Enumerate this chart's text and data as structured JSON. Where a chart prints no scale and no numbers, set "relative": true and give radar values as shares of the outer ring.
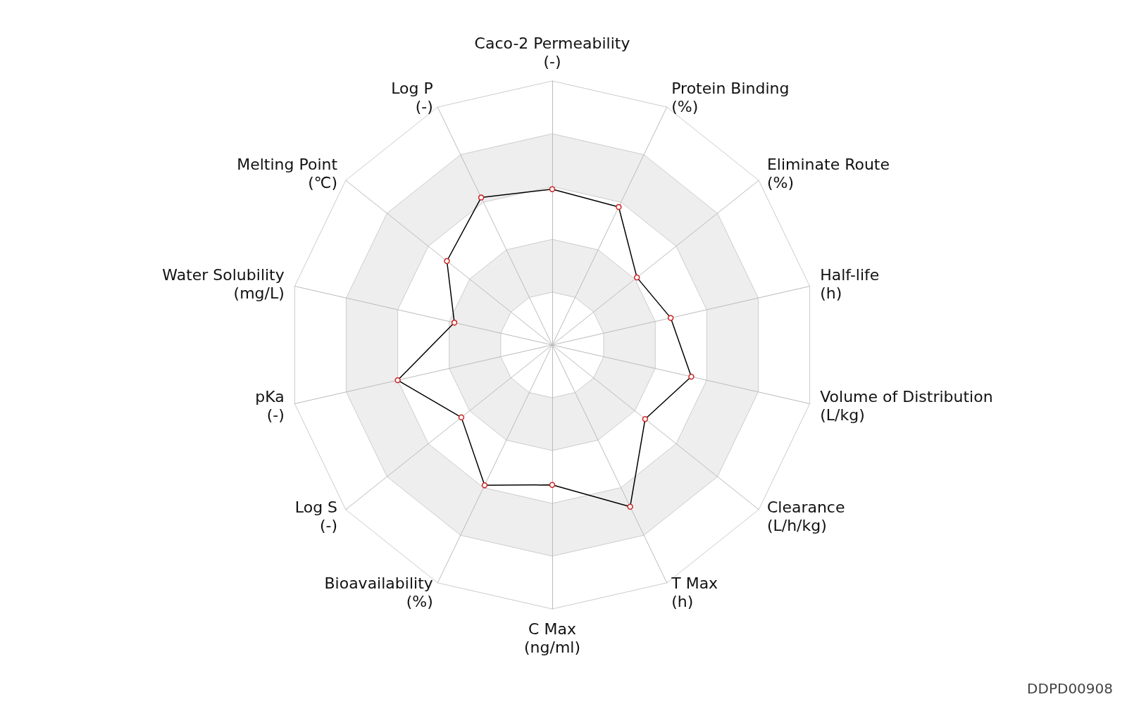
{
  "chart_data": {
    "type": "radar",
    "relative": true,
    "grid": true,
    "marker": "circle",
    "line_style": "solid",
    "categories": [
      "Caco-2 Permeability\n(-)",
      "Protein Binding\n(%)",
      "Eliminate Route\n(%)",
      "Half-life\n(h)",
      "Volume of Distribution\n(L/kg)",
      "Clearance\n(L/h/kg)",
      "T Max\n(h)",
      "C Max\n(ng/ml)",
      "Bioavailability\n(%)",
      "Log S\n(-)",
      "pKa\n(-)",
      "Water Solubility\n(mg/L)",
      "Melting Point\n(℃)",
      "Log P\n(-)"
    ],
    "series": [
      {
        "color": "#000000",
        "values": [
          0.59,
          0.58,
          0.41,
          0.46,
          0.54,
          0.45,
          0.68,
          0.53,
          0.59,
          0.44,
          0.6,
          0.38,
          0.51,
          0.62
        ]
      }
    ],
    "annotations": [
      "DDPD00908"
    ]
  }
}
